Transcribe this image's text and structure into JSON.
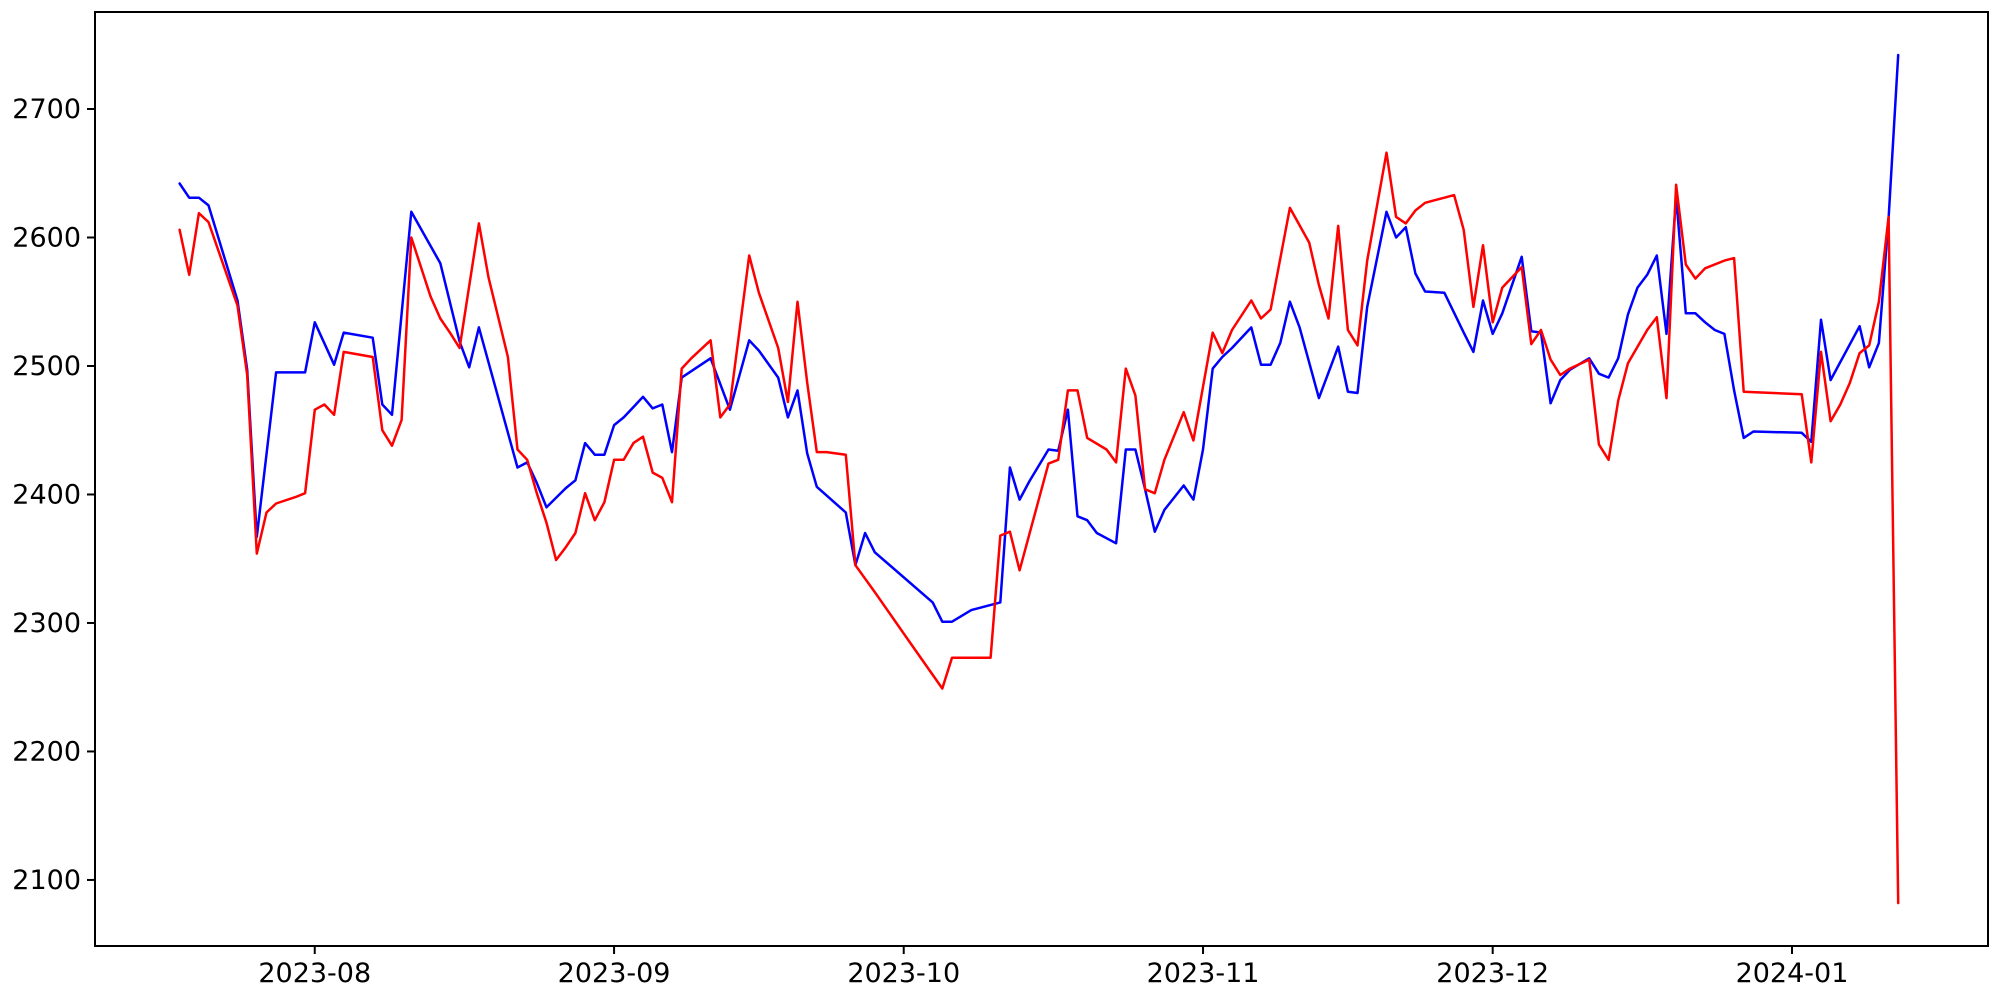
{
  "figure": {
    "background": "#ffffff",
    "title": "",
    "legend": null
  },
  "chart_data": {
    "type": "line",
    "title": "",
    "xlabel": "",
    "ylabel": "",
    "grid": false,
    "x_axis": {
      "kind": "date",
      "start_date": "2023-07-18",
      "min_offset_days": -8.76,
      "max_offset_days": 187.3,
      "tick_labels": [
        "2023-08",
        "2023-09",
        "2023-10",
        "2023-11",
        "2023-12",
        "2024-01"
      ],
      "tick_dates": [
        "2023-08-01",
        "2023-09-01",
        "2023-10-01",
        "2023-11-01",
        "2023-12-01",
        "2024-01-01"
      ]
    },
    "y_axis": {
      "min": 2048.6,
      "max": 2775.5,
      "tick_values": [
        2100,
        2200,
        2300,
        2400,
        2500,
        2600,
        2700
      ],
      "tick_labels": [
        "2100",
        "2200",
        "2300",
        "2400",
        "2500",
        "2600",
        "2700"
      ]
    },
    "series": [
      {
        "name": "blue",
        "color": "#0000ff",
        "points": [
          [
            "2023-07-18",
            2642
          ],
          [
            "2023-07-19",
            2631
          ],
          [
            "2023-07-20",
            2631
          ],
          [
            "2023-07-21",
            2625
          ],
          [
            "2023-07-24",
            2551
          ],
          [
            "2023-07-25",
            2497
          ],
          [
            "2023-07-26",
            2367
          ],
          [
            "2023-07-28",
            2495
          ],
          [
            "2023-07-31",
            2495
          ],
          [
            "2023-08-01",
            2534
          ],
          [
            "2023-08-03",
            2501
          ],
          [
            "2023-08-04",
            2526
          ],
          [
            "2023-08-07",
            2522
          ],
          [
            "2023-08-08",
            2470
          ],
          [
            "2023-08-09",
            2462
          ],
          [
            "2023-08-11",
            2620
          ],
          [
            "2023-08-14",
            2580
          ],
          [
            "2023-08-16",
            2519
          ],
          [
            "2023-08-17",
            2499
          ],
          [
            "2023-08-18",
            2530
          ],
          [
            "2023-08-22",
            2421
          ],
          [
            "2023-08-23",
            2425
          ],
          [
            "2023-08-24",
            2409
          ],
          [
            "2023-08-25",
            2390
          ],
          [
            "2023-08-27",
            2405
          ],
          [
            "2023-08-28",
            2411
          ],
          [
            "2023-08-29",
            2440
          ],
          [
            "2023-08-30",
            2431
          ],
          [
            "2023-08-31",
            2431
          ],
          [
            "2023-09-01",
            2454
          ],
          [
            "2023-09-02",
            2460
          ],
          [
            "2023-09-03",
            2468
          ],
          [
            "2023-09-04",
            2476
          ],
          [
            "2023-09-05",
            2467
          ],
          [
            "2023-09-06",
            2470
          ],
          [
            "2023-09-07",
            2433
          ],
          [
            "2023-09-08",
            2491
          ],
          [
            "2023-09-11",
            2506
          ],
          [
            "2023-09-13",
            2466
          ],
          [
            "2023-09-15",
            2520
          ],
          [
            "2023-09-16",
            2512
          ],
          [
            "2023-09-18",
            2491
          ],
          [
            "2023-09-19",
            2460
          ],
          [
            "2023-09-20",
            2481
          ],
          [
            "2023-09-21",
            2432
          ],
          [
            "2023-09-22",
            2406
          ],
          [
            "2023-09-25",
            2386
          ],
          [
            "2023-09-26",
            2345
          ],
          [
            "2023-09-27",
            2370
          ],
          [
            "2023-09-28",
            2355
          ],
          [
            "2023-10-04",
            2316
          ],
          [
            "2023-10-05",
            2301
          ],
          [
            "2023-10-06",
            2301
          ],
          [
            "2023-10-08",
            2310
          ],
          [
            "2023-10-11",
            2316
          ],
          [
            "2023-10-12",
            2421
          ],
          [
            "2023-10-13",
            2396
          ],
          [
            "2023-10-14",
            2410
          ],
          [
            "2023-10-16",
            2435
          ],
          [
            "2023-10-17",
            2434
          ],
          [
            "2023-10-18",
            2466
          ],
          [
            "2023-10-19",
            2383
          ],
          [
            "2023-10-20",
            2380
          ],
          [
            "2023-10-21",
            2370
          ],
          [
            "2023-10-23",
            2362
          ],
          [
            "2023-10-24",
            2435
          ],
          [
            "2023-10-25",
            2435
          ],
          [
            "2023-10-26",
            2404
          ],
          [
            "2023-10-27",
            2371
          ],
          [
            "2023-10-28",
            2388
          ],
          [
            "2023-10-30",
            2407
          ],
          [
            "2023-10-31",
            2396
          ],
          [
            "2023-11-01",
            2435
          ],
          [
            "2023-11-02",
            2498
          ],
          [
            "2023-11-03",
            2507
          ],
          [
            "2023-11-04",
            2514
          ],
          [
            "2023-11-06",
            2530
          ],
          [
            "2023-11-07",
            2501
          ],
          [
            "2023-11-08",
            2501
          ],
          [
            "2023-11-09",
            2518
          ],
          [
            "2023-11-10",
            2550
          ],
          [
            "2023-11-11",
            2530
          ],
          [
            "2023-11-13",
            2475
          ],
          [
            "2023-11-15",
            2515
          ],
          [
            "2023-11-16",
            2480
          ],
          [
            "2023-11-17",
            2479
          ],
          [
            "2023-11-18",
            2546
          ],
          [
            "2023-11-20",
            2620
          ],
          [
            "2023-11-21",
            2600
          ],
          [
            "2023-11-22",
            2608
          ],
          [
            "2023-11-23",
            2572
          ],
          [
            "2023-11-24",
            2558
          ],
          [
            "2023-11-26",
            2557
          ],
          [
            "2023-11-28",
            2526
          ],
          [
            "2023-11-29",
            2511
          ],
          [
            "2023-11-30",
            2551
          ],
          [
            "2023-12-01",
            2525
          ],
          [
            "2023-12-02",
            2541
          ],
          [
            "2023-12-04",
            2585
          ],
          [
            "2023-12-05",
            2527
          ],
          [
            "2023-12-06",
            2526
          ],
          [
            "2023-12-07",
            2471
          ],
          [
            "2023-12-08",
            2489
          ],
          [
            "2023-12-09",
            2497
          ],
          [
            "2023-12-11",
            2506
          ],
          [
            "2023-12-12",
            2494
          ],
          [
            "2023-12-13",
            2491
          ],
          [
            "2023-12-14",
            2506
          ],
          [
            "2023-12-15",
            2540
          ],
          [
            "2023-12-16",
            2561
          ],
          [
            "2023-12-17",
            2571
          ],
          [
            "2023-12-18",
            2586
          ],
          [
            "2023-12-19",
            2525
          ],
          [
            "2023-12-20",
            2632
          ],
          [
            "2023-12-21",
            2541
          ],
          [
            "2023-12-22",
            2541
          ],
          [
            "2023-12-23",
            2534
          ],
          [
            "2023-12-24",
            2528
          ],
          [
            "2023-12-25",
            2525
          ],
          [
            "2023-12-26",
            2481
          ],
          [
            "2023-12-27",
            2444
          ],
          [
            "2023-12-28",
            2449
          ],
          [
            "2024-01-02",
            2448
          ],
          [
            "2024-01-03",
            2441
          ],
          [
            "2024-01-04",
            2536
          ],
          [
            "2024-01-05",
            2489
          ],
          [
            "2024-01-08",
            2531
          ],
          [
            "2024-01-09",
            2499
          ],
          [
            "2024-01-10",
            2518
          ],
          [
            "2024-01-11",
            2615
          ],
          [
            "2024-01-12",
            2742
          ]
        ]
      },
      {
        "name": "red",
        "color": "#ff0000",
        "points": [
          [
            "2023-07-18",
            2606
          ],
          [
            "2023-07-19",
            2571
          ],
          [
            "2023-07-20",
            2619
          ],
          [
            "2023-07-21",
            2612
          ],
          [
            "2023-07-24",
            2547
          ],
          [
            "2023-07-25",
            2493
          ],
          [
            "2023-07-26",
            2354
          ],
          [
            "2023-07-27",
            2386
          ],
          [
            "2023-07-28",
            2393
          ],
          [
            "2023-07-30",
            2398
          ],
          [
            "2023-07-31",
            2401
          ],
          [
            "2023-08-01",
            2466
          ],
          [
            "2023-08-02",
            2470
          ],
          [
            "2023-08-03",
            2462
          ],
          [
            "2023-08-04",
            2511
          ],
          [
            "2023-08-07",
            2507
          ],
          [
            "2023-08-08",
            2450
          ],
          [
            "2023-08-09",
            2438
          ],
          [
            "2023-08-10",
            2458
          ],
          [
            "2023-08-11",
            2600
          ],
          [
            "2023-08-13",
            2554
          ],
          [
            "2023-08-14",
            2537
          ],
          [
            "2023-08-15",
            2526
          ],
          [
            "2023-08-16",
            2514
          ],
          [
            "2023-08-18",
            2611
          ],
          [
            "2023-08-19",
            2569
          ],
          [
            "2023-08-21",
            2507
          ],
          [
            "2023-08-22",
            2435
          ],
          [
            "2023-08-23",
            2427
          ],
          [
            "2023-08-24",
            2401
          ],
          [
            "2023-08-25",
            2378
          ],
          [
            "2023-08-26",
            2349
          ],
          [
            "2023-08-27",
            2359
          ],
          [
            "2023-08-28",
            2370
          ],
          [
            "2023-08-29",
            2401
          ],
          [
            "2023-08-30",
            2380
          ],
          [
            "2023-08-31",
            2394
          ],
          [
            "2023-09-01",
            2427
          ],
          [
            "2023-09-02",
            2427
          ],
          [
            "2023-09-03",
            2440
          ],
          [
            "2023-09-04",
            2445
          ],
          [
            "2023-09-05",
            2417
          ],
          [
            "2023-09-06",
            2413
          ],
          [
            "2023-09-07",
            2394
          ],
          [
            "2023-09-08",
            2498
          ],
          [
            "2023-09-09",
            2506
          ],
          [
            "2023-09-11",
            2520
          ],
          [
            "2023-09-12",
            2460
          ],
          [
            "2023-09-13",
            2470
          ],
          [
            "2023-09-15",
            2586
          ],
          [
            "2023-09-16",
            2557
          ],
          [
            "2023-09-18",
            2514
          ],
          [
            "2023-09-19",
            2472
          ],
          [
            "2023-09-20",
            2550
          ],
          [
            "2023-09-21",
            2487
          ],
          [
            "2023-09-22",
            2433
          ],
          [
            "2023-09-23",
            2433
          ],
          [
            "2023-09-25",
            2431
          ],
          [
            "2023-09-26",
            2345
          ],
          [
            "2023-09-28",
            2324
          ],
          [
            "2023-10-02",
            2281
          ],
          [
            "2023-10-05",
            2249
          ],
          [
            "2023-10-06",
            2273
          ],
          [
            "2023-10-10",
            2273
          ],
          [
            "2023-10-11",
            2368
          ],
          [
            "2023-10-12",
            2371
          ],
          [
            "2023-10-13",
            2341
          ],
          [
            "2023-10-16",
            2424
          ],
          [
            "2023-10-17",
            2427
          ],
          [
            "2023-10-18",
            2481
          ],
          [
            "2023-10-19",
            2481
          ],
          [
            "2023-10-20",
            2444
          ],
          [
            "2023-10-22",
            2435
          ],
          [
            "2023-10-23",
            2425
          ],
          [
            "2023-10-24",
            2498
          ],
          [
            "2023-10-25",
            2477
          ],
          [
            "2023-10-26",
            2404
          ],
          [
            "2023-10-27",
            2401
          ],
          [
            "2023-10-28",
            2427
          ],
          [
            "2023-10-30",
            2464
          ],
          [
            "2023-10-31",
            2442
          ],
          [
            "2023-11-02",
            2526
          ],
          [
            "2023-11-03",
            2510
          ],
          [
            "2023-11-04",
            2528
          ],
          [
            "2023-11-06",
            2551
          ],
          [
            "2023-11-07",
            2537
          ],
          [
            "2023-11-08",
            2544
          ],
          [
            "2023-11-10",
            2623
          ],
          [
            "2023-11-12",
            2596
          ],
          [
            "2023-11-13",
            2563
          ],
          [
            "2023-11-14",
            2537
          ],
          [
            "2023-11-15",
            2609
          ],
          [
            "2023-11-16",
            2528
          ],
          [
            "2023-11-17",
            2516
          ],
          [
            "2023-11-18",
            2582
          ],
          [
            "2023-11-20",
            2666
          ],
          [
            "2023-11-21",
            2616
          ],
          [
            "2023-11-22",
            2611
          ],
          [
            "2023-11-23",
            2621
          ],
          [
            "2023-11-24",
            2627
          ],
          [
            "2023-11-25",
            2629
          ],
          [
            "2023-11-26",
            2631
          ],
          [
            "2023-11-27",
            2633
          ],
          [
            "2023-11-28",
            2606
          ],
          [
            "2023-11-29",
            2546
          ],
          [
            "2023-11-30",
            2594
          ],
          [
            "2023-12-01",
            2534
          ],
          [
            "2023-12-02",
            2561
          ],
          [
            "2023-12-04",
            2577
          ],
          [
            "2023-12-05",
            2517
          ],
          [
            "2023-12-06",
            2528
          ],
          [
            "2023-12-07",
            2505
          ],
          [
            "2023-12-08",
            2493
          ],
          [
            "2023-12-09",
            2498
          ],
          [
            "2023-12-11",
            2505
          ],
          [
            "2023-12-12",
            2439
          ],
          [
            "2023-12-13",
            2427
          ],
          [
            "2023-12-14",
            2473
          ],
          [
            "2023-12-15",
            2502
          ],
          [
            "2023-12-17",
            2528
          ],
          [
            "2023-12-18",
            2538
          ],
          [
            "2023-12-19",
            2475
          ],
          [
            "2023-12-20",
            2641
          ],
          [
            "2023-12-21",
            2579
          ],
          [
            "2023-12-22",
            2568
          ],
          [
            "2023-12-23",
            2576
          ],
          [
            "2023-12-25",
            2582
          ],
          [
            "2023-12-26",
            2584
          ],
          [
            "2023-12-27",
            2480
          ],
          [
            "2024-01-02",
            2478
          ],
          [
            "2024-01-03",
            2425
          ],
          [
            "2024-01-04",
            2511
          ],
          [
            "2024-01-05",
            2457
          ],
          [
            "2024-01-06",
            2470
          ],
          [
            "2024-01-07",
            2487
          ],
          [
            "2024-01-08",
            2510
          ],
          [
            "2024-01-09",
            2516
          ],
          [
            "2024-01-10",
            2550
          ],
          [
            "2024-01-11",
            2616
          ],
          [
            "2024-01-12",
            2082
          ]
        ]
      }
    ],
    "style": {
      "spine_color": "#000000",
      "tick_color": "#000000",
      "label_color": "#000000"
    }
  }
}
